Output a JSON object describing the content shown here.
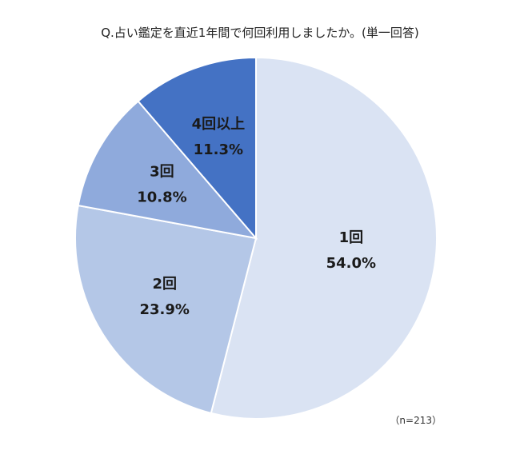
{
  "chart_data": {
    "type": "pie",
    "title": "Q.占い鑑定を直近1年間で何回利用しましたか。(単一回答)",
    "slices": [
      {
        "label": "1回",
        "value": 54.0,
        "value_label": "54.0%",
        "color": "#dae3f3"
      },
      {
        "label": "2回",
        "value": 23.9,
        "value_label": "23.9%",
        "color": "#b4c7e7"
      },
      {
        "label": "3回",
        "value": 10.8,
        "value_label": "10.8%",
        "color": "#8faadc"
      },
      {
        "label": "4回以上",
        "value": 11.3,
        "value_label": "11.3%",
        "color": "#4472c4"
      }
    ],
    "start": "12 o'clock",
    "direction": "clockwise",
    "note": "（n=213）"
  }
}
